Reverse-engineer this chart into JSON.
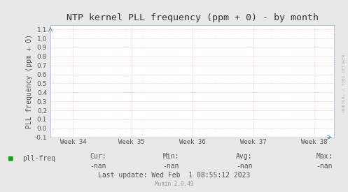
{
  "title": "NTP kernel PLL frequency (ppm + 0) - by month",
  "ylabel": "PLL frequency (ppm + 0)",
  "x_tick_labels": [
    "Week 34",
    "Week 35",
    "Week 36",
    "Week 37",
    "Week 38"
  ],
  "ylim": [
    -0.1,
    1.15
  ],
  "yticks": [
    -0.1,
    0.0,
    0.1,
    0.2,
    0.3,
    0.4,
    0.5,
    0.6,
    0.7,
    0.8,
    0.9,
    1.0,
    1.1
  ],
  "bg_color": "#e8e8e8",
  "plot_bg_color": "#ffffff",
  "grid_color": "#ff9999",
  "title_color": "#333333",
  "axis_label_color": "#555555",
  "tick_label_color": "#555555",
  "legend_label": "pll-freq",
  "legend_color": "#00aa00",
  "cur_val": "-nan",
  "min_val": "-nan",
  "avg_val": "-nan",
  "max_val": "-nan",
  "last_update": "Last update: Wed Feb  1 08:55:12 2023",
  "munin_version": "Munin 2.0.49",
  "watermark": "RRDTOOL / TOBI OETIKER",
  "font_family": "DejaVu Sans Mono",
  "title_fontsize": 9.5,
  "label_fontsize": 7,
  "tick_fontsize": 6.5,
  "legend_fontsize": 7,
  "small_fontsize": 5.5,
  "watermark_fontsize": 4.5
}
